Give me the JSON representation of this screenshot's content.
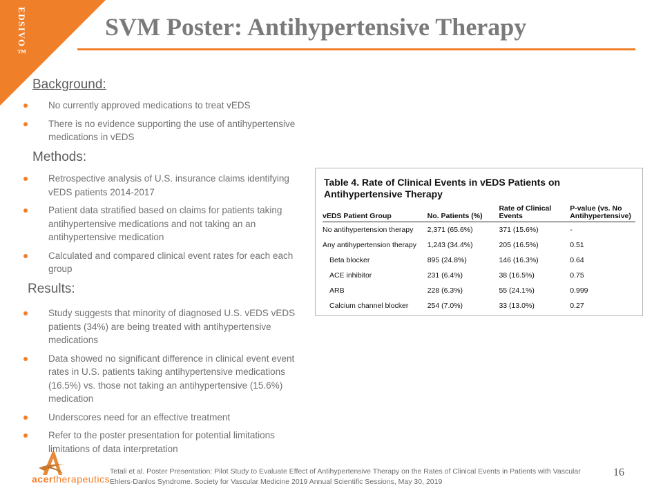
{
  "brand": {
    "vertical_text": "EDSIVO™",
    "company_name_part1": "acer",
    "company_name_part2": "therapeutics",
    "accent_color": "#f07f2a"
  },
  "slide": {
    "title": "SVM Poster: Antihypertensive Therapy",
    "page_number": "16"
  },
  "background": {
    "heading": "Background:",
    "bullets": [
      "No currently approved medications to treat vEDS",
      "There is no evidence supporting the use of antihypertensive medications in vEDS"
    ]
  },
  "methods": {
    "heading": "Methods:",
    "bullets": [
      "Retrospective analysis of U.S. insurance claims identifying vEDS patients 2014-2017",
      "Patient data stratified based on claims for patients taking antihypertensive medications and not taking an an antihypertensive medication",
      "Calculated and compared clinical event rates for each each group"
    ]
  },
  "results": {
    "heading": "Results:",
    "bullets": [
      "Study suggests that minority of diagnosed U.S. vEDS vEDS patients (34%) are being treated with antihypertensive medications",
      "Data showed no significant difference in clinical event event rates in U.S. patients taking antihypertensive medications (16.5%) vs. those not taking an antihypertensive (15.6%) medication",
      "Underscores need for an effective treatment",
      "Refer to the poster presentation for potential limitations limitations of data interpretation"
    ]
  },
  "table": {
    "caption": "Table 4. Rate of Clinical Events in vEDS Patients on Antihypertensive Therapy",
    "headers": [
      "vEDS Patient Group",
      "No. Patients (%)",
      "Rate of Clinical Events",
      "P-value (vs. No Antihypertensive)"
    ],
    "rows": [
      [
        "No antihypertension therapy",
        "2,371 (65.6%)",
        "371 (15.6%)",
        "-"
      ],
      [
        "Any antihypertension therapy",
        "1,243 (34.4%)",
        "205 (16.5%)",
        "0.51"
      ],
      [
        "Beta blocker",
        "895 (24.8%)",
        "146 (16.3%)",
        "0.64"
      ],
      [
        "ACE inhibitor",
        "231 (6.4%)",
        "38 (16.5%)",
        "0.75"
      ],
      [
        "ARB",
        "228 (6.3%)",
        "55 (24.1%)",
        "0.999"
      ],
      [
        "Calcium channel blocker",
        "254 (7.0%)",
        "33 (13.0%)",
        "0.27"
      ]
    ]
  },
  "footnote": "Tetali et al. Poster Presentation: Pilot Study to Evaluate Effect of Antihypertensive Therapy on the Rates of Clinical Events in Patients with Vascular Ehlers-Danlos Syndrome. Society for Vascular Medicine 2019 Annual Scientific Sessions, May 30, 2019"
}
